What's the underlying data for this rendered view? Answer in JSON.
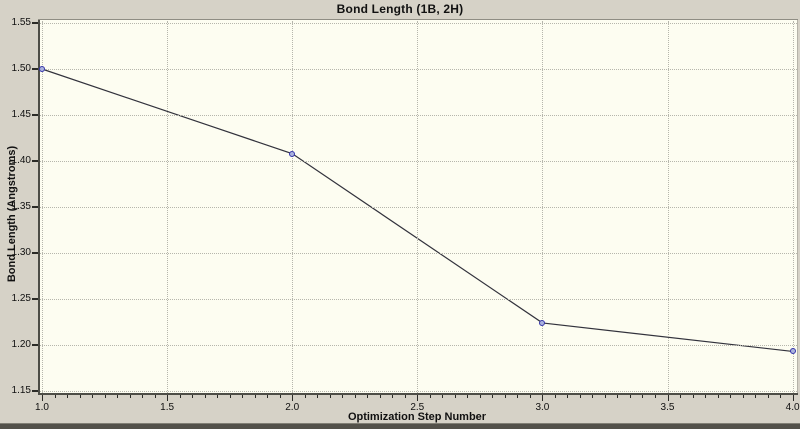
{
  "title": "Bond Length (1B, 2H)",
  "chart_data": {
    "type": "line",
    "title": "Bond Length (1B, 2H)",
    "xlabel": "Optimization Step Number",
    "ylabel": "Bond Length (Angstroms)",
    "series": [
      {
        "name": "Bond Length (1B, 2H)",
        "x": [
          1.0,
          2.0,
          3.0,
          4.0
        ],
        "y": [
          1.5,
          1.408,
          1.224,
          1.193
        ]
      }
    ],
    "xlim": [
      1.0,
      4.0
    ],
    "ylim": [
      1.15,
      1.55
    ],
    "x_major_ticks": [
      "1.0",
      "1.5",
      "2.0",
      "2.5",
      "3.0",
      "3.5",
      "4.0"
    ],
    "x_minor_step": 0.05,
    "y_ticks": [
      "1.55",
      "1.50",
      "1.45",
      "1.40",
      "1.35",
      "1.30",
      "1.25",
      "1.20",
      "1.15"
    ],
    "grid": "dotted horizontal at every y tick, dotted vertical at every major x tick",
    "legend": "none",
    "marker": "small blue circle at each data point"
  },
  "colors": {
    "outer_bg": "#d6d2c7",
    "plot_bg": "#fdfdf1",
    "grid": "#b6b6ac",
    "axis": "#4d4d46",
    "line": "#32323c",
    "marker": "#3434aa",
    "marker_fill": "#aab2dd",
    "text": "#111111",
    "band": "#53514a"
  }
}
